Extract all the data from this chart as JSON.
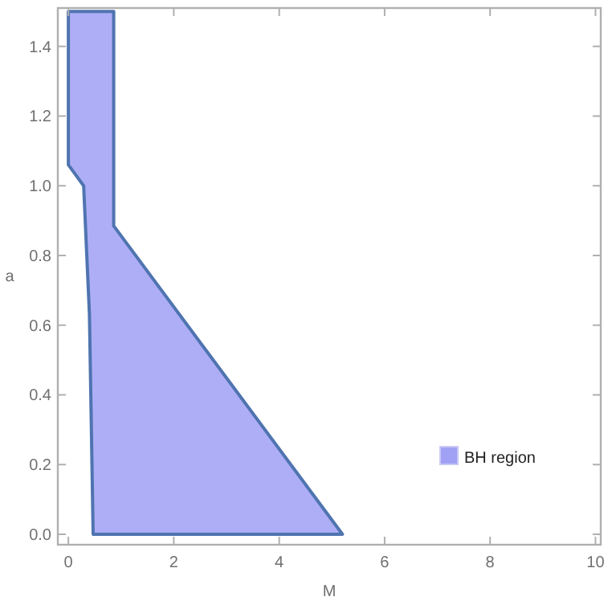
{
  "chart_data": {
    "type": "area",
    "xlabel": "M",
    "ylabel": "a",
    "xlim": [
      -0.2,
      10.1
    ],
    "ylim": [
      -0.03,
      1.51
    ],
    "xticks": [
      0,
      2,
      4,
      6,
      8,
      10
    ],
    "yticks": [
      {
        "value": 0,
        "label": "0.0"
      },
      {
        "value": 0.2,
        "label": "0.2"
      },
      {
        "value": 0.4,
        "label": "0.4"
      },
      {
        "value": 0.6,
        "label": "0.6"
      },
      {
        "value": 0.8,
        "label": "0.8"
      },
      {
        "value": 1.0,
        "label": "1.0"
      },
      {
        "value": 1.2,
        "label": "1.2"
      },
      {
        "value": 1.4,
        "label": "1.4"
      }
    ],
    "legend": "bottom right",
    "grid": false,
    "series": [
      {
        "name": "BH region",
        "color": "#a0a0f5",
        "x": [
          0,
          0.86,
          0.86,
          5.2,
          0.47,
          0.4,
          0.29,
          0
        ],
        "values": [
          1.5,
          1.5,
          0.885,
          0,
          0,
          0.63,
          1.0,
          1.06
        ]
      }
    ]
  }
}
